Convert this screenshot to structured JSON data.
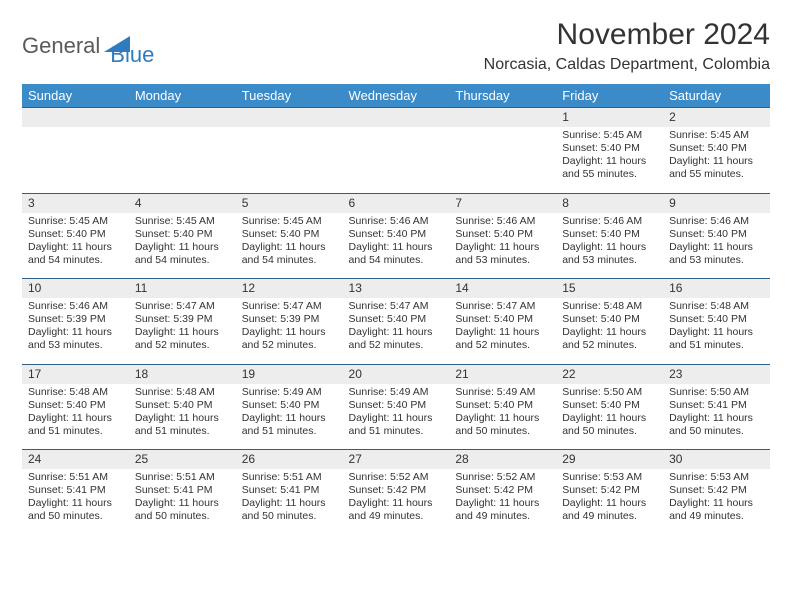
{
  "brand": {
    "part1": "General",
    "part2": "Blue"
  },
  "title": "November 2024",
  "location": "Norcasia, Caldas Department, Colombia",
  "colors": {
    "header_bg": "#3b8bc8",
    "header_text": "#ffffff",
    "daynum_bg": "#ededed",
    "border": "#2f5f88",
    "text": "#333333",
    "logo_gray": "#5a5a5a",
    "logo_blue": "#2f7bbf",
    "page_bg": "#ffffff"
  },
  "fonts": {
    "title_pt": 30,
    "location_pt": 16,
    "header_pt": 13,
    "daynum_pt": 12,
    "body_pt": 10.5
  },
  "weekdays": [
    "Sunday",
    "Monday",
    "Tuesday",
    "Wednesday",
    "Thursday",
    "Friday",
    "Saturday"
  ],
  "weeks": [
    [
      null,
      null,
      null,
      null,
      null,
      {
        "n": "1",
        "sr": "Sunrise: 5:45 AM",
        "ss": "Sunset: 5:40 PM",
        "dl1": "Daylight: 11 hours",
        "dl2": "and 55 minutes."
      },
      {
        "n": "2",
        "sr": "Sunrise: 5:45 AM",
        "ss": "Sunset: 5:40 PM",
        "dl1": "Daylight: 11 hours",
        "dl2": "and 55 minutes."
      }
    ],
    [
      {
        "n": "3",
        "sr": "Sunrise: 5:45 AM",
        "ss": "Sunset: 5:40 PM",
        "dl1": "Daylight: 11 hours",
        "dl2": "and 54 minutes."
      },
      {
        "n": "4",
        "sr": "Sunrise: 5:45 AM",
        "ss": "Sunset: 5:40 PM",
        "dl1": "Daylight: 11 hours",
        "dl2": "and 54 minutes."
      },
      {
        "n": "5",
        "sr": "Sunrise: 5:45 AM",
        "ss": "Sunset: 5:40 PM",
        "dl1": "Daylight: 11 hours",
        "dl2": "and 54 minutes."
      },
      {
        "n": "6",
        "sr": "Sunrise: 5:46 AM",
        "ss": "Sunset: 5:40 PM",
        "dl1": "Daylight: 11 hours",
        "dl2": "and 54 minutes."
      },
      {
        "n": "7",
        "sr": "Sunrise: 5:46 AM",
        "ss": "Sunset: 5:40 PM",
        "dl1": "Daylight: 11 hours",
        "dl2": "and 53 minutes."
      },
      {
        "n": "8",
        "sr": "Sunrise: 5:46 AM",
        "ss": "Sunset: 5:40 PM",
        "dl1": "Daylight: 11 hours",
        "dl2": "and 53 minutes."
      },
      {
        "n": "9",
        "sr": "Sunrise: 5:46 AM",
        "ss": "Sunset: 5:40 PM",
        "dl1": "Daylight: 11 hours",
        "dl2": "and 53 minutes."
      }
    ],
    [
      {
        "n": "10",
        "sr": "Sunrise: 5:46 AM",
        "ss": "Sunset: 5:39 PM",
        "dl1": "Daylight: 11 hours",
        "dl2": "and 53 minutes."
      },
      {
        "n": "11",
        "sr": "Sunrise: 5:47 AM",
        "ss": "Sunset: 5:39 PM",
        "dl1": "Daylight: 11 hours",
        "dl2": "and 52 minutes."
      },
      {
        "n": "12",
        "sr": "Sunrise: 5:47 AM",
        "ss": "Sunset: 5:39 PM",
        "dl1": "Daylight: 11 hours",
        "dl2": "and 52 minutes."
      },
      {
        "n": "13",
        "sr": "Sunrise: 5:47 AM",
        "ss": "Sunset: 5:40 PM",
        "dl1": "Daylight: 11 hours",
        "dl2": "and 52 minutes."
      },
      {
        "n": "14",
        "sr": "Sunrise: 5:47 AM",
        "ss": "Sunset: 5:40 PM",
        "dl1": "Daylight: 11 hours",
        "dl2": "and 52 minutes."
      },
      {
        "n": "15",
        "sr": "Sunrise: 5:48 AM",
        "ss": "Sunset: 5:40 PM",
        "dl1": "Daylight: 11 hours",
        "dl2": "and 52 minutes."
      },
      {
        "n": "16",
        "sr": "Sunrise: 5:48 AM",
        "ss": "Sunset: 5:40 PM",
        "dl1": "Daylight: 11 hours",
        "dl2": "and 51 minutes."
      }
    ],
    [
      {
        "n": "17",
        "sr": "Sunrise: 5:48 AM",
        "ss": "Sunset: 5:40 PM",
        "dl1": "Daylight: 11 hours",
        "dl2": "and 51 minutes."
      },
      {
        "n": "18",
        "sr": "Sunrise: 5:48 AM",
        "ss": "Sunset: 5:40 PM",
        "dl1": "Daylight: 11 hours",
        "dl2": "and 51 minutes."
      },
      {
        "n": "19",
        "sr": "Sunrise: 5:49 AM",
        "ss": "Sunset: 5:40 PM",
        "dl1": "Daylight: 11 hours",
        "dl2": "and 51 minutes."
      },
      {
        "n": "20",
        "sr": "Sunrise: 5:49 AM",
        "ss": "Sunset: 5:40 PM",
        "dl1": "Daylight: 11 hours",
        "dl2": "and 51 minutes."
      },
      {
        "n": "21",
        "sr": "Sunrise: 5:49 AM",
        "ss": "Sunset: 5:40 PM",
        "dl1": "Daylight: 11 hours",
        "dl2": "and 50 minutes."
      },
      {
        "n": "22",
        "sr": "Sunrise: 5:50 AM",
        "ss": "Sunset: 5:40 PM",
        "dl1": "Daylight: 11 hours",
        "dl2": "and 50 minutes."
      },
      {
        "n": "23",
        "sr": "Sunrise: 5:50 AM",
        "ss": "Sunset: 5:41 PM",
        "dl1": "Daylight: 11 hours",
        "dl2": "and 50 minutes."
      }
    ],
    [
      {
        "n": "24",
        "sr": "Sunrise: 5:51 AM",
        "ss": "Sunset: 5:41 PM",
        "dl1": "Daylight: 11 hours",
        "dl2": "and 50 minutes."
      },
      {
        "n": "25",
        "sr": "Sunrise: 5:51 AM",
        "ss": "Sunset: 5:41 PM",
        "dl1": "Daylight: 11 hours",
        "dl2": "and 50 minutes."
      },
      {
        "n": "26",
        "sr": "Sunrise: 5:51 AM",
        "ss": "Sunset: 5:41 PM",
        "dl1": "Daylight: 11 hours",
        "dl2": "and 50 minutes."
      },
      {
        "n": "27",
        "sr": "Sunrise: 5:52 AM",
        "ss": "Sunset: 5:42 PM",
        "dl1": "Daylight: 11 hours",
        "dl2": "and 49 minutes."
      },
      {
        "n": "28",
        "sr": "Sunrise: 5:52 AM",
        "ss": "Sunset: 5:42 PM",
        "dl1": "Daylight: 11 hours",
        "dl2": "and 49 minutes."
      },
      {
        "n": "29",
        "sr": "Sunrise: 5:53 AM",
        "ss": "Sunset: 5:42 PM",
        "dl1": "Daylight: 11 hours",
        "dl2": "and 49 minutes."
      },
      {
        "n": "30",
        "sr": "Sunrise: 5:53 AM",
        "ss": "Sunset: 5:42 PM",
        "dl1": "Daylight: 11 hours",
        "dl2": "and 49 minutes."
      }
    ]
  ]
}
